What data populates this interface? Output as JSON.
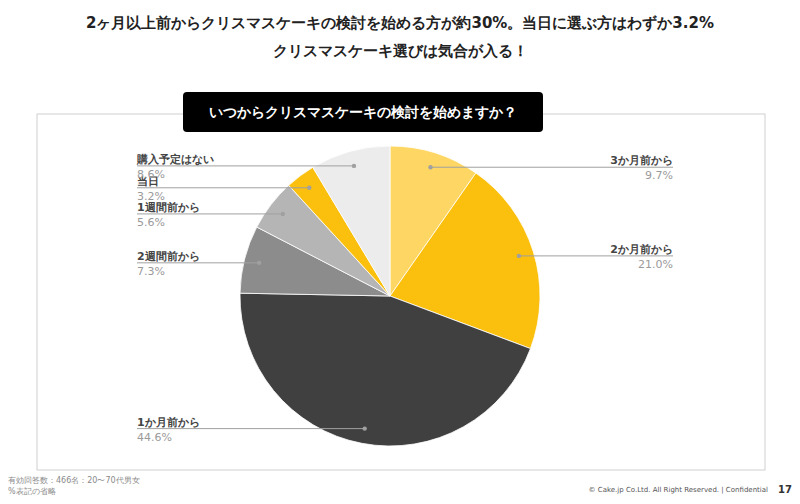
{
  "chart_data": {
    "type": "pie",
    "subtitle": [
      "2ヶ月以上前からクリスマスケーキの検討を始める方が約30%。当日に選ぶ方はわずか3.2%",
      "クリスマスケーキ選びは気合が入る！"
    ],
    "title": "いつからクリスマスケーキの検討を始めますか？",
    "categories": [
      "3か月前から",
      "2か月前から",
      "1か月前から",
      "2週間前から",
      "1週間前から",
      "当日",
      "購入予定はない"
    ],
    "values": [
      9.7,
      21.0,
      44.6,
      7.3,
      5.6,
      3.2,
      8.6
    ],
    "value_labels": [
      "9.7%",
      "21.0%",
      "44.6%",
      "7.3%",
      "5.6%",
      "3.2%",
      "8.6%"
    ],
    "colors": [
      "#fdd663",
      "#fbbf0d",
      "#404040",
      "#8c8c8c",
      "#b5b5b5",
      "#fbbf0d",
      "#ececec"
    ],
    "data_labels": true,
    "annotations": [
      "有効回答数：466名：20〜70代男女",
      "%表記の省略",
      "© Cake.jp Co.Ltd. All Right Reserved. | Confidential",
      "17"
    ]
  }
}
